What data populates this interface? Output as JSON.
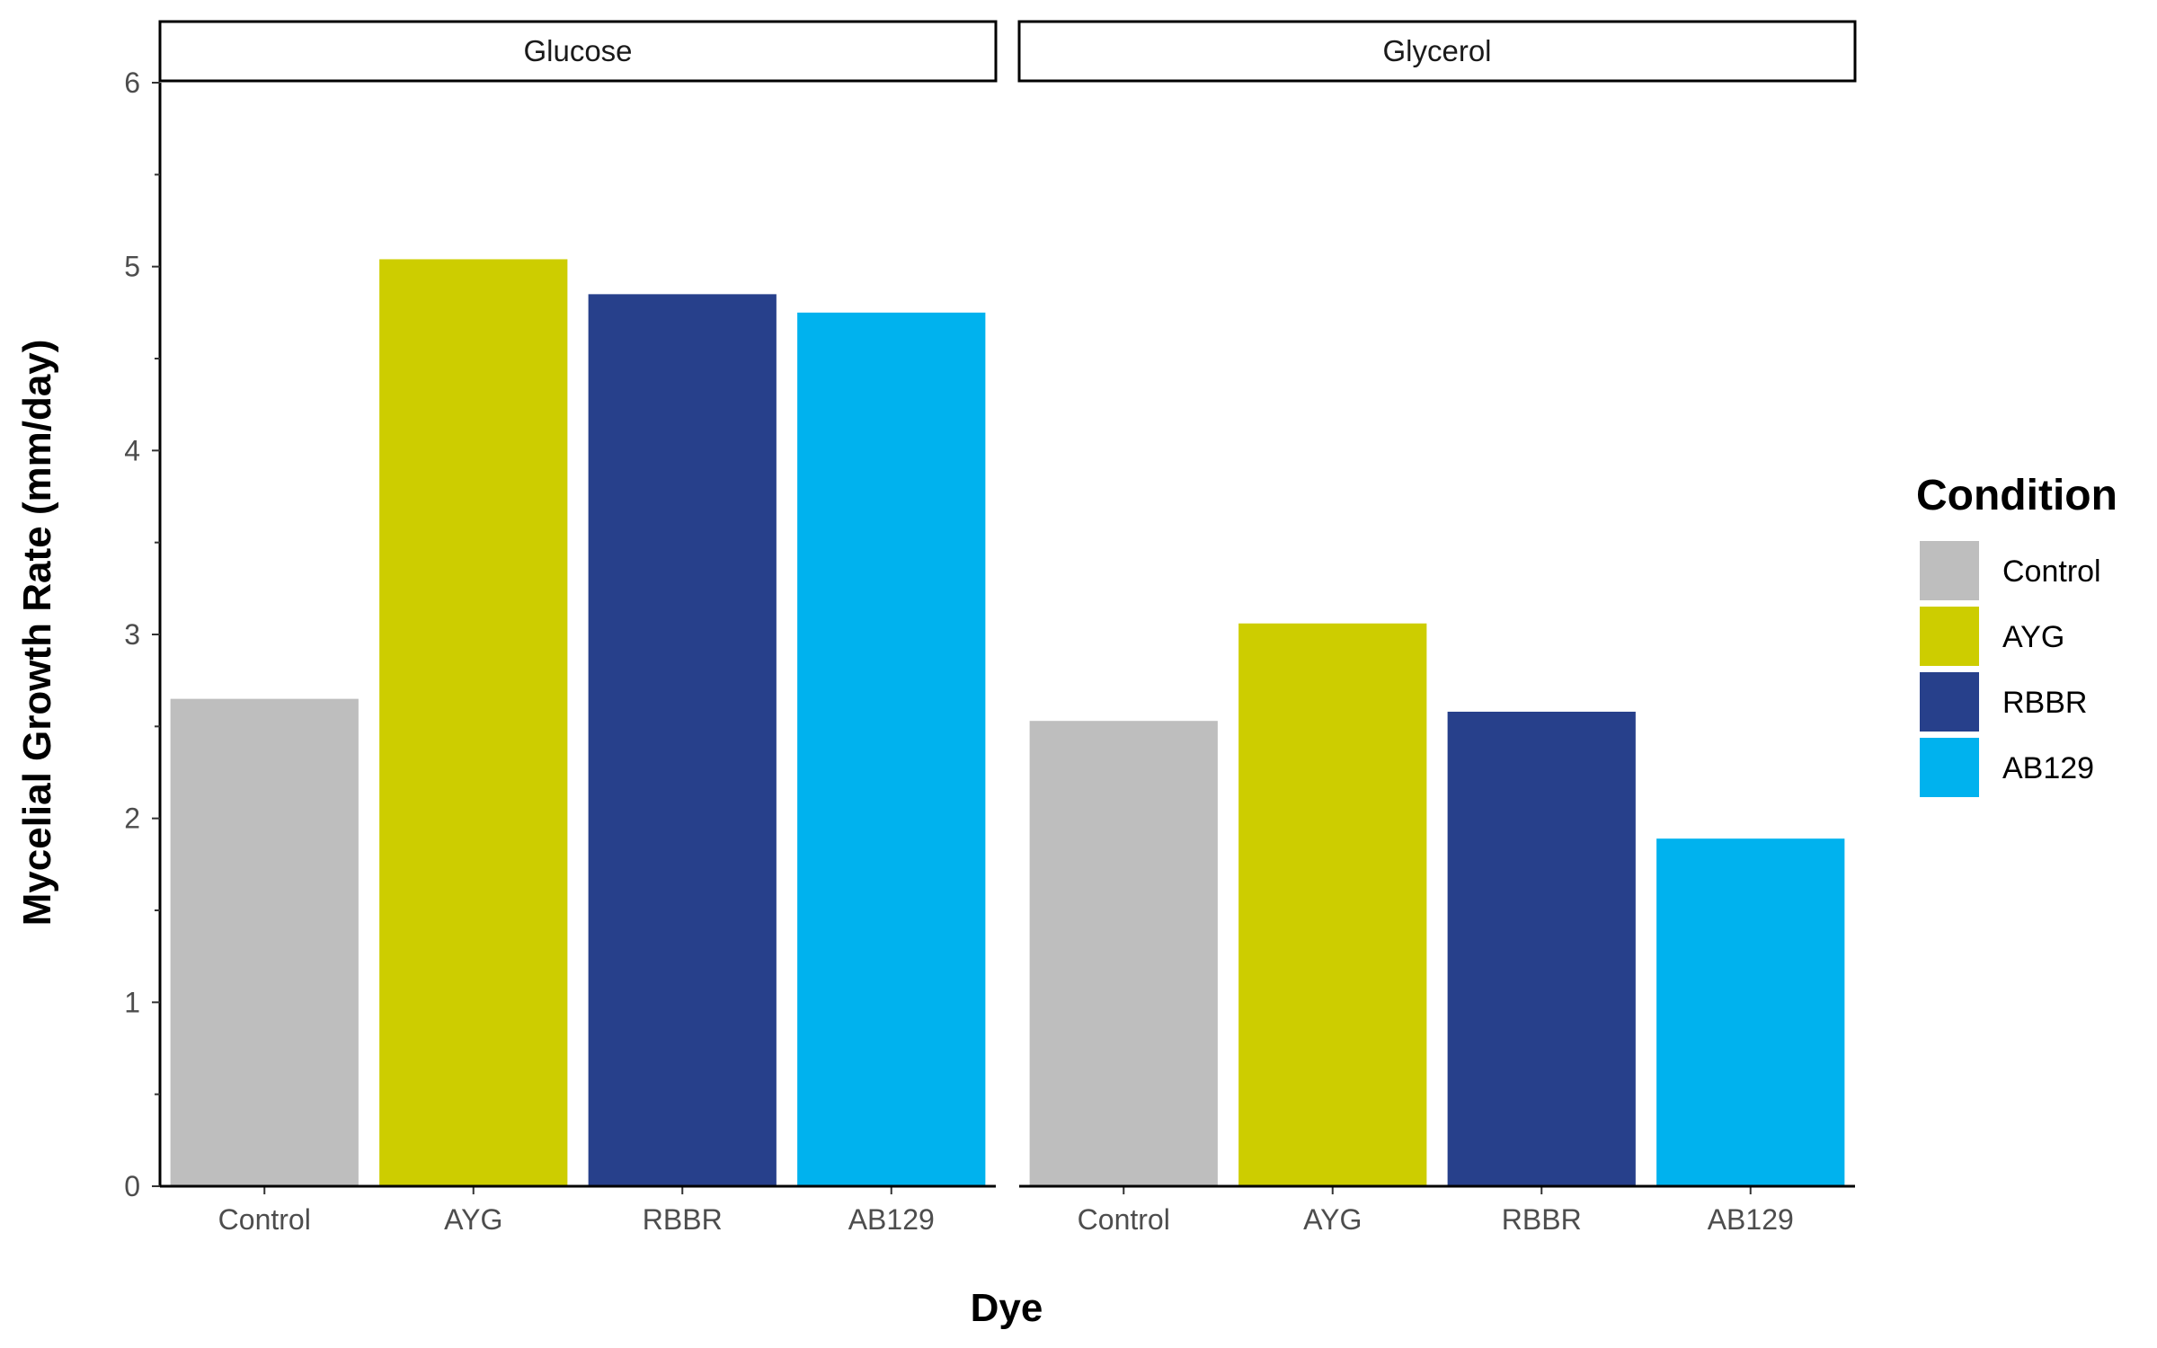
{
  "chart_data": {
    "type": "bar",
    "xlabel": "Dye",
    "ylabel": "Mycelial Growth Rate (mm/day)",
    "ylim": [
      0,
      6
    ],
    "yticks": [
      "0",
      "1",
      "2",
      "3",
      "4",
      "5",
      "6"
    ],
    "categories": [
      "Control",
      "AYG",
      "RBBR",
      "AB129"
    ],
    "grid": false,
    "legend": {
      "title": "Condition",
      "placement": "right",
      "entries": [
        {
          "label": "Control",
          "color": "#bebebe"
        },
        {
          "label": "AYG",
          "color": "#cdcd00"
        },
        {
          "label": "RBBR",
          "color": "#27408b"
        },
        {
          "label": "AB129",
          "color": "#00b2ee"
        }
      ]
    },
    "panels": [
      {
        "title": "Glucose",
        "values": [
          2.65,
          5.04,
          4.85,
          4.75
        ]
      },
      {
        "title": "Glycerol",
        "values": [
          2.53,
          3.06,
          2.58,
          1.89
        ]
      }
    ]
  }
}
